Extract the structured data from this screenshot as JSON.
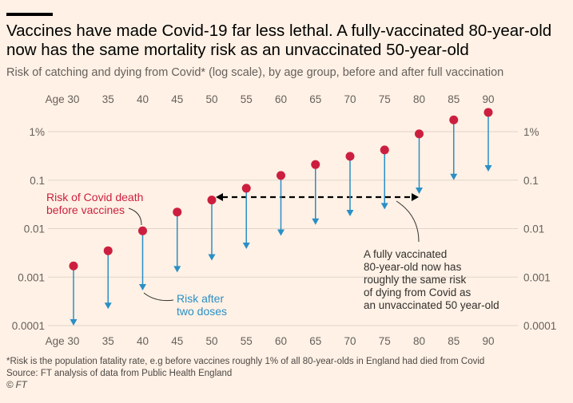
{
  "title": "Vaccines have made Covid-19 far less lethal. A fully-vaccinated 80-year-old now has the same mortality risk as an unvaccinated 50-year-old",
  "subtitle": "Risk of catching and dying from Covid* (log scale), by age group, before and after full vaccination",
  "footnotes": {
    "note": "*Risk is the population fatality rate, e.g before vaccines roughly 1% of all 80-year-olds in England had died from Covid",
    "source": "Source: FT analysis of data from Public Health England",
    "copyright": "© FT"
  },
  "colors": {
    "background": "#fff1e5",
    "before": "#cc1f3f",
    "after": "#2a8fc6",
    "grid": "#e0d4c9"
  },
  "chart_data": {
    "type": "arrow-dot",
    "y_scale": "log",
    "ylim": [
      0.0001,
      3
    ],
    "grid": true,
    "categories": [
      "Age 30",
      "35",
      "40",
      "45",
      "50",
      "55",
      "60",
      "65",
      "70",
      "75",
      "80",
      "85",
      "90"
    ],
    "y_ticks": [
      {
        "value": 1,
        "label": "1%"
      },
      {
        "value": 0.1,
        "label": "0.1"
      },
      {
        "value": 0.01,
        "label": "0.01"
      },
      {
        "value": 0.001,
        "label": "0.001"
      },
      {
        "value": 0.0001,
        "label": "0.0001"
      }
    ],
    "series": [
      {
        "name": "Risk of Covid death before vaccines",
        "values": [
          0.0017,
          0.0035,
          0.009,
          0.022,
          0.039,
          0.068,
          0.125,
          0.21,
          0.31,
          0.42,
          0.9,
          1.75,
          2.5
        ]
      },
      {
        "name": "Risk after two doses",
        "values": [
          0.0001,
          0.00022,
          0.00053,
          0.00125,
          0.0022,
          0.0038,
          0.0071,
          0.012,
          0.018,
          0.025,
          0.052,
          0.1,
          0.15
        ]
      }
    ],
    "annotations": {
      "before_label": [
        "Risk of Covid death",
        "before vaccines"
      ],
      "after_label": [
        "Risk after",
        "two doses"
      ],
      "comparison": [
        "A fully vaccinated",
        "80-year-old now has",
        "roughly the same risk",
        "of dying from Covid as",
        "an unvaccinated 50 year-old"
      ]
    }
  }
}
